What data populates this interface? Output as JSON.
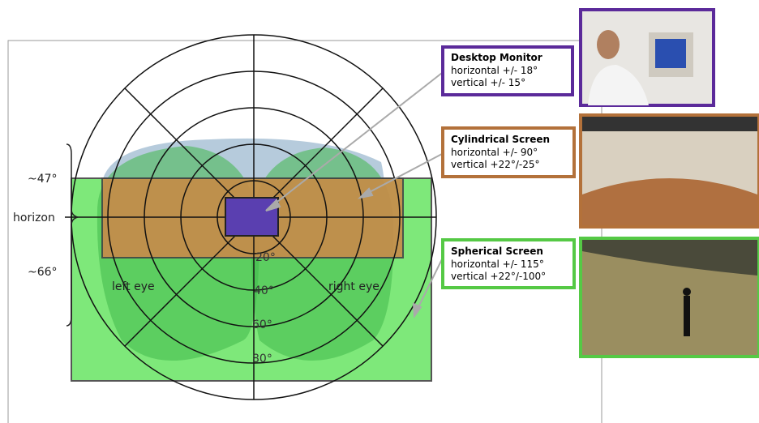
{
  "diagram": {
    "side_labels": [
      "~47°",
      "horizon",
      "~66°"
    ],
    "eye_labels": [
      "left eye",
      "right eye"
    ],
    "ring_labels": [
      "20°",
      "40°",
      "60°",
      "80°"
    ],
    "displays": [
      {
        "title": "Desktop Monitor",
        "lines": [
          "horizontal +/- 18°",
          "vertical +/- 15°"
        ]
      },
      {
        "title": "Cylindrical Screen",
        "lines": [
          "horizontal +/- 90°",
          "vertical +22°/-25°"
        ]
      },
      {
        "title": "Spherical Screen",
        "lines": [
          "horizontal +/- 115°",
          "vertical +22°/-100°"
        ]
      }
    ]
  }
}
